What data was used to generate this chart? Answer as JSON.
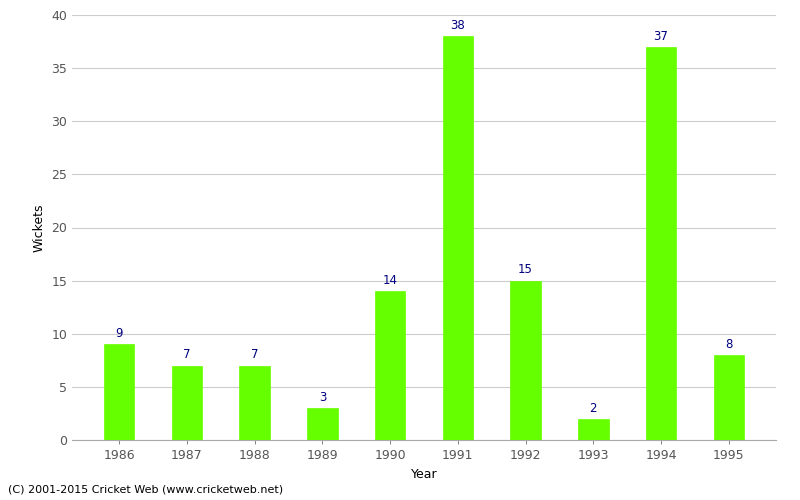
{
  "years": [
    "1986",
    "1987",
    "1988",
    "1989",
    "1990",
    "1991",
    "1992",
    "1993",
    "1994",
    "1995"
  ],
  "values": [
    9,
    7,
    7,
    3,
    14,
    38,
    15,
    2,
    37,
    8
  ],
  "bar_color": "#66ff00",
  "bar_edge_color": "#66ff00",
  "label_color": "#000080",
  "xlabel": "Year",
  "ylabel": "Wickets",
  "ylim": [
    0,
    40
  ],
  "yticks": [
    0,
    5,
    10,
    15,
    20,
    25,
    30,
    35,
    40
  ],
  "grid_color": "#cccccc",
  "background_color": "#ffffff",
  "footer": "(C) 2001-2015 Cricket Web (www.cricketweb.net)",
  "label_fontsize": 8.5,
  "axis_fontsize": 9,
  "footer_fontsize": 8,
  "bar_width": 0.45
}
